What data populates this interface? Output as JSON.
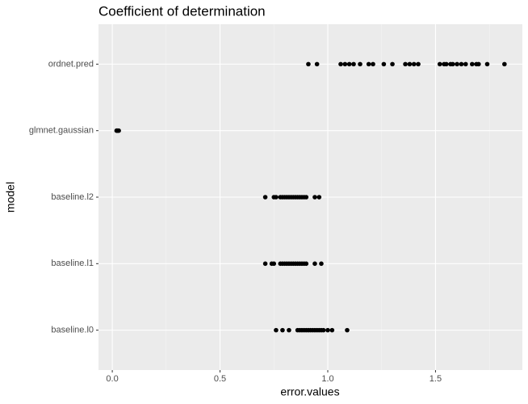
{
  "chart_data": {
    "type": "scatter",
    "title": "Coefficient of determination",
    "xlabel": "error.values",
    "ylabel": "model",
    "categories": [
      "baseline.l0",
      "baseline.l1",
      "baseline.l2",
      "glmnet.gaussian",
      "ordnet.pred"
    ],
    "values": [
      [
        0.76,
        0.79,
        0.82,
        0.86,
        0.87,
        0.88,
        0.89,
        0.9,
        0.91,
        0.92,
        0.93,
        0.94,
        0.95,
        0.96,
        0.97,
        0.98,
        1.0,
        1.02,
        1.09
      ],
      [
        0.71,
        0.74,
        0.75,
        0.78,
        0.79,
        0.8,
        0.81,
        0.82,
        0.83,
        0.84,
        0.85,
        0.86,
        0.87,
        0.88,
        0.89,
        0.9,
        0.94,
        0.97
      ],
      [
        0.71,
        0.75,
        0.76,
        0.78,
        0.79,
        0.8,
        0.81,
        0.82,
        0.83,
        0.84,
        0.85,
        0.86,
        0.87,
        0.88,
        0.89,
        0.9,
        0.94,
        0.96
      ],
      [
        0.02,
        0.025,
        0.03,
        0.022
      ],
      [
        0.91,
        0.95,
        1.06,
        1.08,
        1.1,
        1.12,
        1.15,
        1.19,
        1.21,
        1.26,
        1.3,
        1.36,
        1.38,
        1.4,
        1.42,
        1.52,
        1.54,
        1.55,
        1.57,
        1.58,
        1.6,
        1.62,
        1.64,
        1.67,
        1.69,
        1.7,
        1.74,
        1.82
      ]
    ],
    "color": "#000000",
    "xlim": [
      -0.064,
      1.903
    ],
    "xticks": [
      {
        "value": 0,
        "label": "0.0"
      },
      0.5,
      {
        "value": 1,
        "label": "1.0"
      },
      1.5
    ],
    "minor_xticks": [
      0.25,
      0.75,
      1.25,
      1.75
    ],
    "grid": true
  }
}
